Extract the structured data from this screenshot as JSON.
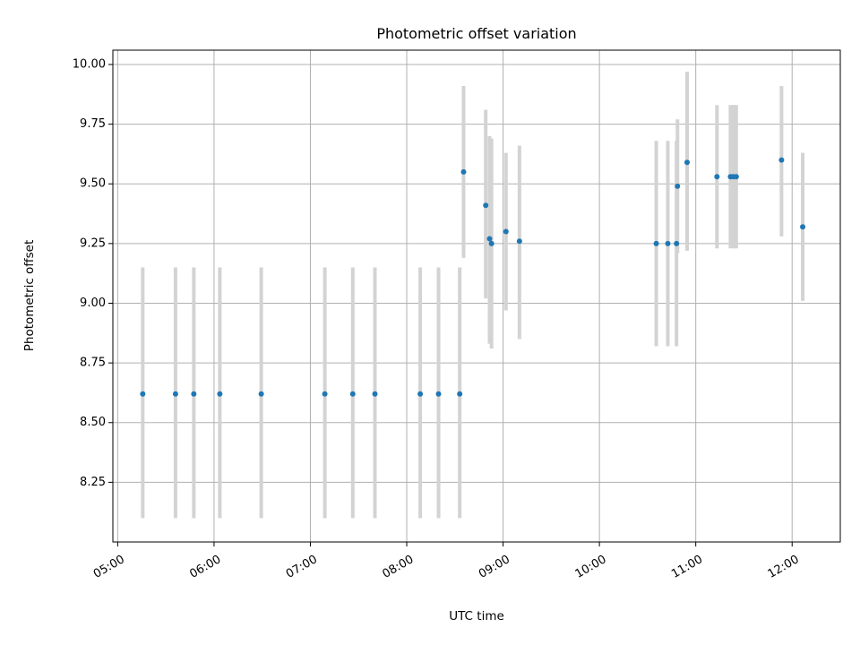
{
  "chart_data": {
    "type": "scatter",
    "title": "Photometric offset variation",
    "xlabel": "UTC time",
    "ylabel": "Photometric offset",
    "x_unit": "hours UTC",
    "xlim": [
      4.95,
      12.5
    ],
    "ylim": [
      8.0,
      10.06
    ],
    "xticks": [
      {
        "value": 5,
        "label": "05:00"
      },
      {
        "value": 6,
        "label": "06:00"
      },
      {
        "value": 7,
        "label": "07:00"
      },
      {
        "value": 8,
        "label": "08:00"
      },
      {
        "value": 9,
        "label": "09:00"
      },
      {
        "value": 10,
        "label": "10:00"
      },
      {
        "value": 11,
        "label": "11:00"
      },
      {
        "value": 12,
        "label": "12:00"
      }
    ],
    "yticks": [
      {
        "value": 8.25,
        "label": "8.25"
      },
      {
        "value": 8.5,
        "label": "8.50"
      },
      {
        "value": 8.75,
        "label": "8.75"
      },
      {
        "value": 9.0,
        "label": "9.00"
      },
      {
        "value": 9.25,
        "label": "9.25"
      },
      {
        "value": 9.5,
        "label": "9.50"
      },
      {
        "value": 9.75,
        "label": "9.75"
      },
      {
        "value": 10.0,
        "label": "10.00"
      }
    ],
    "grid": true,
    "point_color": "#1f77b4",
    "errorbar_color": "#d3d3d3",
    "points": [
      {
        "x": 5.26,
        "y": 8.62,
        "lo": 8.1,
        "hi": 9.15
      },
      {
        "x": 5.6,
        "y": 8.62,
        "lo": 8.1,
        "hi": 9.15
      },
      {
        "x": 5.79,
        "y": 8.62,
        "lo": 8.1,
        "hi": 9.15
      },
      {
        "x": 6.06,
        "y": 8.62,
        "lo": 8.1,
        "hi": 9.15
      },
      {
        "x": 6.49,
        "y": 8.62,
        "lo": 8.1,
        "hi": 9.15
      },
      {
        "x": 7.15,
        "y": 8.62,
        "lo": 8.1,
        "hi": 9.15
      },
      {
        "x": 7.44,
        "y": 8.62,
        "lo": 8.1,
        "hi": 9.15
      },
      {
        "x": 7.67,
        "y": 8.62,
        "lo": 8.1,
        "hi": 9.15
      },
      {
        "x": 8.14,
        "y": 8.62,
        "lo": 8.1,
        "hi": 9.15
      },
      {
        "x": 8.33,
        "y": 8.62,
        "lo": 8.1,
        "hi": 9.15
      },
      {
        "x": 8.55,
        "y": 8.62,
        "lo": 8.1,
        "hi": 9.15
      },
      {
        "x": 8.59,
        "y": 9.55,
        "lo": 9.19,
        "hi": 9.91
      },
      {
        "x": 8.82,
        "y": 9.41,
        "lo": 9.02,
        "hi": 9.81
      },
      {
        "x": 8.86,
        "y": 9.27,
        "lo": 8.83,
        "hi": 9.7
      },
      {
        "x": 8.88,
        "y": 9.25,
        "lo": 8.81,
        "hi": 9.69
      },
      {
        "x": 9.03,
        "y": 9.3,
        "lo": 8.97,
        "hi": 9.63
      },
      {
        "x": 9.17,
        "y": 9.26,
        "lo": 8.85,
        "hi": 9.66
      },
      {
        "x": 10.59,
        "y": 9.25,
        "lo": 8.82,
        "hi": 9.68
      },
      {
        "x": 10.71,
        "y": 9.25,
        "lo": 8.82,
        "hi": 9.68
      },
      {
        "x": 10.8,
        "y": 9.25,
        "lo": 8.82,
        "hi": 9.68
      },
      {
        "x": 10.81,
        "y": 9.49,
        "lo": 9.21,
        "hi": 9.77
      },
      {
        "x": 10.91,
        "y": 9.59,
        "lo": 9.22,
        "hi": 9.97
      },
      {
        "x": 11.22,
        "y": 9.53,
        "lo": 9.23,
        "hi": 9.83
      },
      {
        "x": 11.36,
        "y": 9.53,
        "lo": 9.23,
        "hi": 9.83
      },
      {
        "x": 11.39,
        "y": 9.53,
        "lo": 9.23,
        "hi": 9.83
      },
      {
        "x": 11.42,
        "y": 9.53,
        "lo": 9.23,
        "hi": 9.83
      },
      {
        "x": 11.89,
        "y": 9.6,
        "lo": 9.28,
        "hi": 9.91
      },
      {
        "x": 12.11,
        "y": 9.32,
        "lo": 9.01,
        "hi": 9.63
      }
    ]
  }
}
